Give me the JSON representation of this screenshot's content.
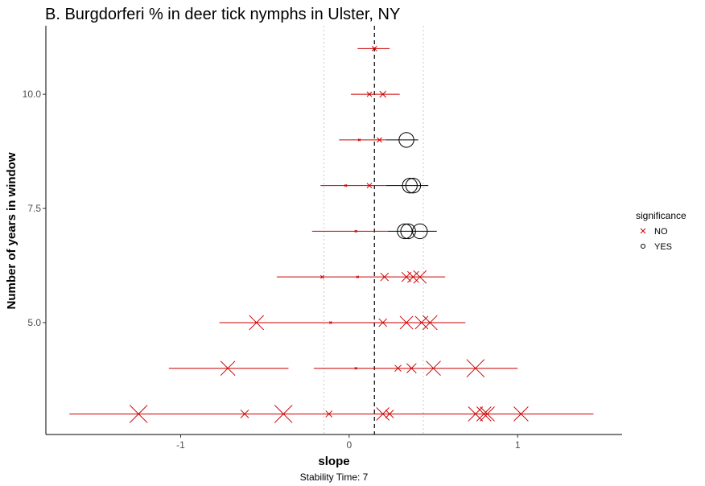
{
  "chart_data": {
    "type": "scatter",
    "title": "B. Burgdorferi % in deer tick nymphs in Ulster, NY",
    "xlabel": "slope",
    "ylabel": "Number of years in window",
    "caption": "Stability Time: 7",
    "xlim": [
      -1.8,
      1.62
    ],
    "ylim": [
      2.55,
      11.5
    ],
    "x_ticks": [
      -1,
      0,
      1
    ],
    "x_tick_labels": [
      "-1",
      "0",
      "1"
    ],
    "y_ticks": [
      5.0,
      7.5,
      10.0
    ],
    "y_tick_labels": [
      "5.0",
      "7.5",
      "10.0"
    ],
    "grid": false,
    "reference_lines": {
      "dashed_black_x": 0.15,
      "dotted_gray_x": [
        -0.15,
        0.44
      ]
    },
    "legend": {
      "title": "significance",
      "position": "right",
      "entries": [
        {
          "label": "NO",
          "shape": "x",
          "color": "#cc0000"
        },
        {
          "label": "YES",
          "shape": "circle",
          "color": "#000000"
        }
      ]
    },
    "colors": {
      "NO": "#cc0000",
      "YES": "#000000"
    },
    "series": [
      {
        "name": "NO",
        "points": [
          {
            "y": 11,
            "slope": 0.15,
            "lo": 0.05,
            "hi": 0.24,
            "size": 1
          },
          {
            "y": 10,
            "slope": 0.12,
            "lo": 0.01,
            "hi": 0.3,
            "size": 1
          },
          {
            "y": 10,
            "slope": 0.2,
            "lo": 0.01,
            "hi": 0.3,
            "size": 1.5
          },
          {
            "y": 9,
            "slope": 0.06,
            "lo": -0.06,
            "hi": 0.22,
            "size": 0.2
          },
          {
            "y": 9,
            "slope": 0.18,
            "lo": -0.06,
            "hi": 0.22,
            "size": 1
          },
          {
            "y": 8,
            "slope": -0.02,
            "lo": -0.17,
            "hi": 0.22,
            "size": 0.2
          },
          {
            "y": 8,
            "slope": 0.12,
            "lo": -0.17,
            "hi": 0.22,
            "size": 1
          },
          {
            "y": 7,
            "slope": 0.04,
            "lo": -0.22,
            "hi": 0.23,
            "size": 0.2
          },
          {
            "y": 6,
            "slope": -0.16,
            "lo": -0.43,
            "hi": 0.57,
            "size": 0.5
          },
          {
            "y": 6,
            "slope": 0.05,
            "lo": -0.43,
            "hi": 0.57,
            "size": 0.2
          },
          {
            "y": 6,
            "slope": 0.21,
            "lo": -0.43,
            "hi": 0.57,
            "size": 2
          },
          {
            "y": 6,
            "slope": 0.34,
            "lo": -0.43,
            "hi": 0.57,
            "size": 2.5
          },
          {
            "y": 6,
            "slope": 0.38,
            "lo": -0.43,
            "hi": 0.57,
            "size": 3
          },
          {
            "y": 6,
            "slope": 0.42,
            "lo": -0.43,
            "hi": 0.57,
            "size": 3.5
          },
          {
            "y": 5,
            "slope": -0.55,
            "lo": -0.77,
            "hi": 0.69,
            "size": 4
          },
          {
            "y": 5,
            "slope": -0.11,
            "lo": -0.77,
            "hi": 0.69,
            "size": 0.2
          },
          {
            "y": 5,
            "slope": 0.2,
            "lo": -0.77,
            "hi": 0.69,
            "size": 2
          },
          {
            "y": 5,
            "slope": 0.34,
            "lo": -0.77,
            "hi": 0.69,
            "size": 3.5
          },
          {
            "y": 5,
            "slope": 0.43,
            "lo": -0.77,
            "hi": 0.69,
            "size": 3.5
          },
          {
            "y": 5,
            "slope": 0.48,
            "lo": -0.77,
            "hi": 0.69,
            "size": 4
          },
          {
            "y": 4,
            "slope": -0.72,
            "lo": -1.07,
            "hi": -0.36,
            "size": 4
          },
          {
            "y": 4,
            "slope": 0.04,
            "lo": -0.21,
            "hi": 1.0,
            "size": 0.2
          },
          {
            "y": 4,
            "slope": 0.29,
            "lo": -0.21,
            "hi": 1.0,
            "size": 1.5
          },
          {
            "y": 4,
            "slope": 0.37,
            "lo": -0.21,
            "hi": 1.0,
            "size": 2.5
          },
          {
            "y": 4,
            "slope": 0.5,
            "lo": -0.21,
            "hi": 1.0,
            "size": 4
          },
          {
            "y": 4,
            "slope": 0.75,
            "lo": -0.21,
            "hi": 1.0,
            "size": 5
          },
          {
            "y": 3,
            "slope": -1.25,
            "lo": -1.66,
            "hi": 1.45,
            "size": 5
          },
          {
            "y": 3,
            "slope": -0.62,
            "lo": -1.66,
            "hi": 1.45,
            "size": 2
          },
          {
            "y": 3,
            "slope": -0.39,
            "lo": -1.66,
            "hi": 1.45,
            "size": 5
          },
          {
            "y": 3,
            "slope": -0.12,
            "lo": -1.66,
            "hi": 1.45,
            "size": 1.5
          },
          {
            "y": 3,
            "slope": 0.2,
            "lo": -1.66,
            "hi": 1.45,
            "size": 3.5
          },
          {
            "y": 3,
            "slope": 0.24,
            "lo": -1.66,
            "hi": 1.45,
            "size": 2
          },
          {
            "y": 3,
            "slope": 0.75,
            "lo": -1.66,
            "hi": 1.45,
            "size": 4
          },
          {
            "y": 3,
            "slope": 0.8,
            "lo": -1.66,
            "hi": 1.45,
            "size": 4
          },
          {
            "y": 3,
            "slope": 0.82,
            "lo": -1.66,
            "hi": 1.45,
            "size": 4
          },
          {
            "y": 3,
            "slope": 1.02,
            "lo": -1.66,
            "hi": 1.45,
            "size": 4
          }
        ]
      },
      {
        "name": "YES",
        "points": [
          {
            "y": 9,
            "slope": 0.34,
            "lo": 0.22,
            "hi": 0.41,
            "size": 4
          },
          {
            "y": 8,
            "slope": 0.36,
            "lo": 0.22,
            "hi": 0.47,
            "size": 4
          },
          {
            "y": 8,
            "slope": 0.38,
            "lo": 0.22,
            "hi": 0.47,
            "size": 4
          },
          {
            "y": 7,
            "slope": 0.33,
            "lo": 0.23,
            "hi": 0.52,
            "size": 4
          },
          {
            "y": 7,
            "slope": 0.35,
            "lo": 0.23,
            "hi": 0.52,
            "size": 4
          },
          {
            "y": 7,
            "slope": 0.42,
            "lo": 0.23,
            "hi": 0.52,
            "size": 4
          }
        ]
      }
    ]
  }
}
